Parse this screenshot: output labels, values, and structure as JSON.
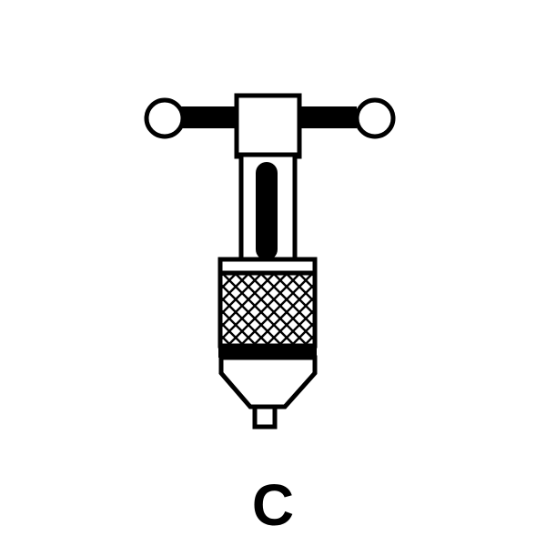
{
  "figure": {
    "caption": "C",
    "subject_icon": "t-handle-tap-wrench-icon"
  },
  "colors": {
    "ink": "#000000",
    "paper": "#ffffff"
  }
}
